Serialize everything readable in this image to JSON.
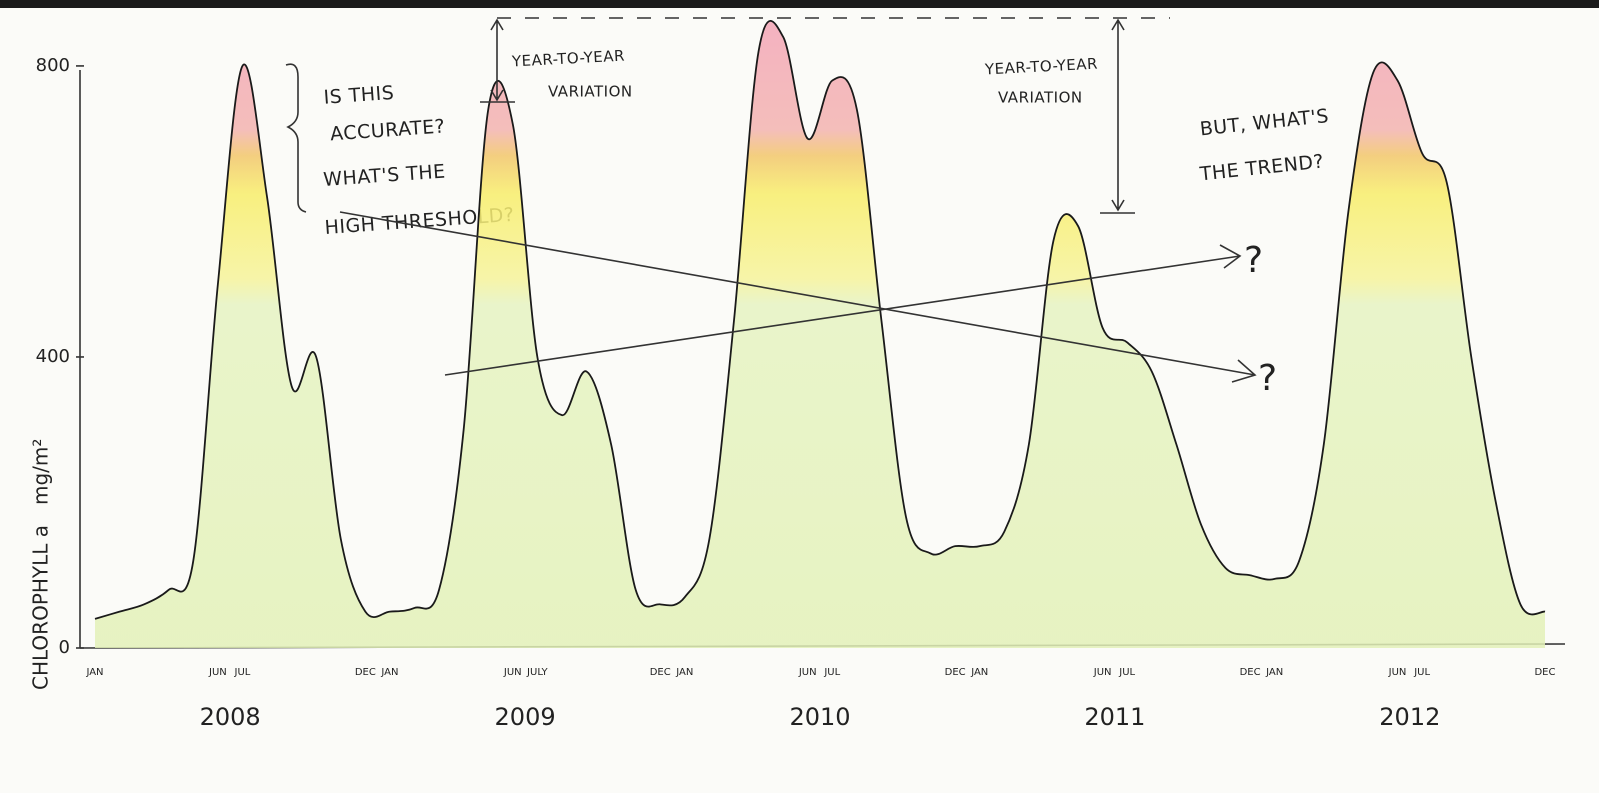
{
  "chart_data": {
    "type": "area",
    "ylabel": [
      "CHLOROPHYLL a",
      "mg/m²"
    ],
    "categories": [
      "JAN",
      null,
      null,
      null,
      null,
      "JUN",
      "JUL",
      null,
      null,
      null,
      null,
      "DEC",
      "JAN",
      null,
      null,
      null,
      null,
      "JUN",
      "JULY",
      null,
      null,
      null,
      null,
      "DEC",
      "JAN",
      null,
      null,
      null,
      null,
      "JUN",
      "JUL",
      null,
      null,
      null,
      null,
      "DEC",
      "JAN",
      null,
      null,
      null,
      null,
      "JUN",
      "JUL",
      null,
      null,
      null,
      null,
      "DEC",
      "JAN",
      null,
      null,
      null,
      null,
      "JUN",
      "JUL",
      null,
      null,
      null,
      null,
      "DEC"
    ],
    "years": [
      "2008",
      "2009",
      "2010",
      "2011",
      "2012"
    ],
    "values": [
      40,
      50,
      60,
      80,
      120,
      500,
      800,
      620,
      360,
      400,
      150,
      50,
      50,
      55,
      80,
      300,
      740,
      720,
      400,
      320,
      380,
      280,
      80,
      60,
      70,
      150,
      450,
      820,
      840,
      700,
      780,
      740,
      450,
      180,
      130,
      140,
      140,
      160,
      280,
      560,
      580,
      440,
      420,
      380,
      280,
      170,
      110,
      100,
      95,
      120,
      280,
      600,
      790,
      780,
      680,
      640,
      400,
      200,
      60,
      50
    ],
    "color": "#1a1a1a",
    "ylim": [
      0,
      870
    ],
    "yticks": [
      0,
      400,
      800
    ],
    "grid": false,
    "annotations": [
      {
        "lines": [
          "IS THIS",
          "ACCURATE?",
          "WHAT'S THE",
          "HIGH THRESHOLD?"
        ]
      },
      {
        "lines": [
          "YEAR-TO-YEAR",
          "VARIATION"
        ]
      },
      {
        "lines": [
          "YEAR-TO-YEAR",
          "VARIATION"
        ]
      },
      {
        "lines": [
          "BUT, WHAT'S",
          "THE TREND?"
        ]
      },
      {
        "lines": [
          "?"
        ]
      },
      {
        "lines": [
          "?"
        ]
      }
    ]
  }
}
